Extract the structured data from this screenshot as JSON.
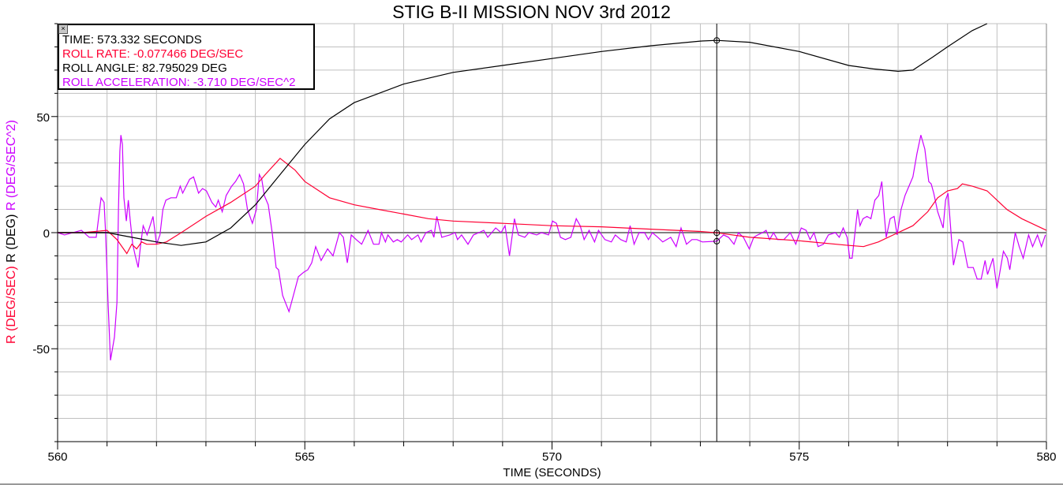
{
  "chart_data": {
    "type": "line",
    "title": "STIG B-II MISSION NOV 3rd 2012",
    "xlabel": "TIME (SECONDS)",
    "ylabel_parts": [
      {
        "text": "R (DEG/SEC)",
        "color": "#ff0033"
      },
      {
        "text": "R (DEG)",
        "color": "#000000"
      },
      {
        "text": "R (DEG/SEC^2)",
        "color": "#cc00ff"
      }
    ],
    "xlim": [
      560,
      580
    ],
    "ylim": [
      -90,
      90
    ],
    "x_ticks": [
      560,
      565,
      570,
      575,
      580
    ],
    "y_ticks": [
      -50,
      0,
      50
    ],
    "x_minor_step": 1,
    "y_minor_step": 10,
    "grid": true,
    "cursor": {
      "time": 573.332,
      "legend": {
        "close": "×",
        "lines": [
          {
            "text": "TIME: 573.332 SECONDS",
            "color": "#000000"
          },
          {
            "text": "ROLL RATE: -0.077466 DEG/SEC",
            "color": "#ff0033"
          },
          {
            "text": "ROLL ANGLE: 82.795029 DEG",
            "color": "#000000"
          },
          {
            "text": "ROLL ACCELERATION: -3.710 DEG/SEC^2",
            "color": "#cc00ff"
          }
        ]
      },
      "values": [
        -0.077466,
        82.795029,
        -3.71
      ]
    },
    "series": [
      {
        "name": "ROLL RATE",
        "color": "#ff0033",
        "x": [
          560,
          560.5,
          561,
          561.2,
          561.4,
          561.5,
          561.6,
          561.7,
          561.8,
          562,
          562.2,
          562.5,
          563,
          563.5,
          564,
          564.2,
          564.5,
          564.8,
          565,
          565.5,
          566,
          566.5,
          567,
          567.5,
          568,
          569,
          570,
          571,
          572,
          573,
          573.332,
          574,
          575,
          576,
          576.3,
          576.6,
          577,
          577.3,
          577.6,
          577.8,
          578,
          578.2,
          578.3,
          578.5,
          578.8,
          579.2,
          579.5,
          579.8,
          580
        ],
        "y": [
          0,
          0,
          1,
          -3,
          -9,
          -5,
          -7,
          -4,
          -5,
          -5,
          -4,
          0,
          7,
          13,
          20,
          25,
          32,
          27,
          22,
          15,
          12,
          10,
          8,
          6,
          5,
          4,
          3,
          2.5,
          1.5,
          0.5,
          -0.08,
          -2,
          -3.5,
          -5.5,
          -6,
          -4,
          0,
          3,
          9,
          15,
          18,
          19,
          21,
          20,
          18,
          10,
          6,
          3,
          1
        ]
      },
      {
        "name": "ROLL ANGLE",
        "color": "#000000",
        "x": [
          560,
          561,
          561.5,
          562,
          562.5,
          563,
          563.5,
          564,
          564.5,
          565,
          565.5,
          566,
          567,
          568,
          569,
          570,
          571,
          572,
          573,
          573.332,
          574,
          575,
          576,
          576.5,
          577,
          577.3,
          577.7,
          578,
          578.5,
          578.8
        ],
        "y": [
          0,
          0,
          -2,
          -4,
          -5.5,
          -4,
          2,
          12,
          25,
          38,
          49,
          56,
          64,
          69,
          72,
          75,
          78,
          80.5,
          82.5,
          82.8,
          82,
          78,
          72,
          70.5,
          69.5,
          70,
          75.6,
          80,
          87,
          90
        ]
      },
      {
        "name": "ROLL ACCELERATION",
        "color": "#cc00ff",
        "x": [
          560,
          560.14,
          560.48,
          560.64,
          560.78,
          560.88,
          560.94,
          560.97,
          561.02,
          561.07,
          561.15,
          561.2,
          561.23,
          561.26,
          561.28,
          561.31,
          561.34,
          561.39,
          561.43,
          561.47,
          561.52,
          561.57,
          561.63,
          561.68,
          561.73,
          561.81,
          561.93,
          562,
          562.07,
          562.13,
          562.19,
          562.29,
          562.4,
          562.48,
          562.53,
          562.67,
          562.75,
          562.85,
          562.93,
          563.01,
          563.12,
          563.2,
          563.25,
          563.33,
          563.41,
          563.52,
          563.6,
          563.68,
          563.76,
          563.84,
          563.94,
          564.02,
          564.08,
          564.13,
          564.18,
          564.26,
          564.34,
          564.42,
          564.47,
          564.55,
          564.68,
          564.77,
          564.87,
          564.98,
          565.06,
          565.14,
          565.22,
          565.33,
          565.46,
          565.57,
          565.7,
          565.78,
          565.86,
          565.94,
          566.04,
          566.15,
          566.28,
          566.39,
          566.5,
          566.55,
          566.63,
          566.68,
          566.79,
          566.87,
          566.95,
          567.08,
          567.16,
          567.29,
          567.35,
          567.45,
          567.56,
          567.61,
          567.67,
          567.77,
          567.93,
          568.04,
          568.09,
          568.17,
          568.3,
          568.41,
          568.52,
          568.62,
          568.7,
          568.78,
          568.86,
          568.97,
          569.05,
          569.14,
          569.24,
          569.32,
          569.45,
          569.53,
          569.69,
          569.79,
          569.93,
          570.01,
          570.09,
          570.17,
          570.27,
          570.38,
          570.49,
          570.57,
          570.65,
          570.75,
          570.86,
          570.94,
          571.07,
          571.2,
          571.28,
          571.39,
          571.5,
          571.58,
          571.66,
          571.76,
          571.87,
          571.95,
          572.03,
          572.14,
          572.24,
          572.4,
          572.51,
          572.61,
          572.72,
          572.83,
          572.93,
          573.04,
          573.332,
          573.47,
          573.57,
          573.68,
          573.77,
          573.87,
          573.99,
          574.08,
          574.16,
          574.26,
          574.33,
          574.4,
          574.48,
          574.56,
          574.69,
          574.82,
          574.93,
          575.04,
          575.14,
          575.22,
          575.3,
          575.38,
          575.49,
          575.59,
          575.73,
          575.81,
          575.89,
          575.97,
          576.02,
          576.07,
          576.18,
          576.23,
          576.29,
          576.37,
          576.45,
          576.53,
          576.61,
          576.67,
          576.71,
          576.76,
          576.84,
          576.92,
          576.98,
          577.06,
          577.14,
          577.22,
          577.3,
          577.38,
          577.46,
          577.54,
          577.62,
          577.67,
          577.72,
          577.8,
          577.91,
          577.96,
          578.01,
          578.07,
          578.12,
          578.23,
          578.31,
          578.41,
          578.52,
          578.6,
          578.68,
          578.76,
          578.81,
          578.92,
          579,
          579.05,
          579.13,
          579.21,
          579.26,
          579.37,
          579.45,
          579.53,
          579.64,
          579.72,
          579.82,
          579.9,
          579.98
        ],
        "y": [
          0,
          -1,
          1,
          -2,
          -2,
          15,
          13,
          0,
          -30,
          -55,
          -45,
          -30,
          10,
          35,
          42,
          38,
          15,
          5,
          14,
          5,
          -5,
          -10,
          -15,
          -5,
          3,
          -1,
          7,
          -5,
          -1,
          10,
          14,
          15,
          15,
          20,
          17,
          23,
          24,
          17,
          19,
          18,
          13,
          11,
          14,
          9,
          16,
          20,
          22,
          25,
          21,
          10,
          4,
          10,
          25,
          23,
          16,
          12,
          0,
          -15,
          -16,
          -27,
          -34,
          -27,
          -19,
          -17,
          -16,
          -13,
          -6,
          -12,
          -7,
          -10,
          0,
          -2,
          -13,
          -1,
          -3,
          -5,
          1,
          -5,
          -5,
          0,
          -4,
          -1,
          -4,
          -3,
          -4,
          -1,
          -3,
          -1,
          -4,
          0,
          1,
          -2,
          7,
          -2,
          -1,
          0,
          -3,
          -1,
          -5,
          -1,
          0,
          1,
          -2,
          0,
          2,
          0,
          3,
          -10,
          6,
          -1,
          -2,
          0,
          -1,
          0,
          -1,
          5,
          4,
          -2,
          -3,
          -2,
          6,
          3,
          -3,
          1,
          -4,
          1,
          -3,
          -4,
          -1,
          -3,
          -4,
          3,
          -5,
          0,
          0,
          -3,
          0,
          -2,
          -4,
          -2,
          -6,
          2,
          -5,
          -3,
          -3,
          -4,
          -3.71,
          -1,
          -2,
          -5,
          0,
          -2,
          -7,
          -2,
          -1,
          0,
          1,
          -3,
          0,
          -3,
          -3,
          0,
          -5,
          2,
          1,
          -3,
          0,
          -6,
          -5,
          -1,
          0,
          -2,
          2,
          -2,
          -11,
          -11,
          10,
          3,
          6,
          7,
          6,
          14,
          16,
          22,
          10,
          -2,
          6,
          7,
          -1,
          10,
          16,
          20,
          24,
          34,
          42,
          36,
          22,
          21,
          17,
          9,
          2,
          14,
          17,
          0,
          -14,
          -3,
          -4,
          -15,
          -15,
          -20,
          -20,
          -12,
          -18,
          -11,
          -24,
          -18,
          -8,
          -11,
          -16,
          0,
          -6,
          -11,
          -1,
          -6,
          -1,
          -6,
          -1
        ]
      }
    ]
  }
}
